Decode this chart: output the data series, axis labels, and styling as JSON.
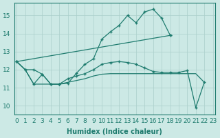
{
  "xlabel": "Humidex (Indice chaleur)",
  "xlim": [
    -0.3,
    23.3
  ],
  "ylim": [
    9.5,
    15.7
  ],
  "xticks": [
    0,
    1,
    2,
    3,
    4,
    5,
    6,
    7,
    8,
    9,
    10,
    11,
    12,
    13,
    14,
    15,
    16,
    17,
    18,
    19,
    20,
    21,
    22,
    23
  ],
  "yticks": [
    10,
    11,
    12,
    13,
    14,
    15
  ],
  "bg_color": "#cce9e5",
  "line_color": "#1e7b6e",
  "grid_color": "#aacfca",
  "curves": [
    {
      "x": [
        0,
        1,
        2,
        3,
        4,
        5,
        6,
        7,
        8,
        9,
        10,
        11,
        12,
        13,
        14,
        15,
        16,
        17,
        18
      ],
      "y": [
        12.45,
        12.0,
        12.0,
        11.75,
        11.2,
        11.2,
        11.25,
        11.8,
        12.3,
        12.6,
        13.7,
        14.1,
        14.45,
        15.0,
        14.6,
        15.2,
        15.35,
        14.85,
        13.9
      ],
      "marker": true,
      "dashed": false
    },
    {
      "x": [
        0,
        18
      ],
      "y": [
        12.45,
        13.9
      ],
      "marker": true,
      "dashed": false
    },
    {
      "x": [
        0,
        1,
        2,
        3,
        4,
        5,
        6,
        7,
        8,
        9,
        10,
        11,
        12,
        13,
        14,
        15,
        16,
        17,
        18,
        19,
        20,
        21,
        22
      ],
      "y": [
        12.45,
        12.0,
        11.2,
        11.2,
        11.2,
        11.2,
        11.3,
        11.4,
        11.5,
        11.65,
        11.75,
        11.78,
        11.78,
        11.78,
        11.78,
        11.78,
        11.78,
        11.78,
        11.78,
        11.78,
        11.78,
        11.78,
        11.3
      ],
      "marker": false,
      "dashed": false
    },
    {
      "x": [
        0,
        1,
        2,
        3,
        4,
        5,
        6,
        7,
        8,
        9,
        10,
        11,
        12,
        13,
        14,
        15,
        16,
        17,
        18,
        19,
        20,
        21,
        22
      ],
      "y": [
        12.45,
        12.0,
        11.2,
        11.75,
        11.2,
        11.2,
        11.5,
        11.65,
        11.78,
        12.0,
        12.3,
        12.4,
        12.45,
        12.4,
        12.3,
        12.1,
        11.9,
        11.85,
        11.85,
        11.85,
        11.95,
        9.9,
        11.3
      ],
      "marker": true,
      "dashed": false
    }
  ]
}
